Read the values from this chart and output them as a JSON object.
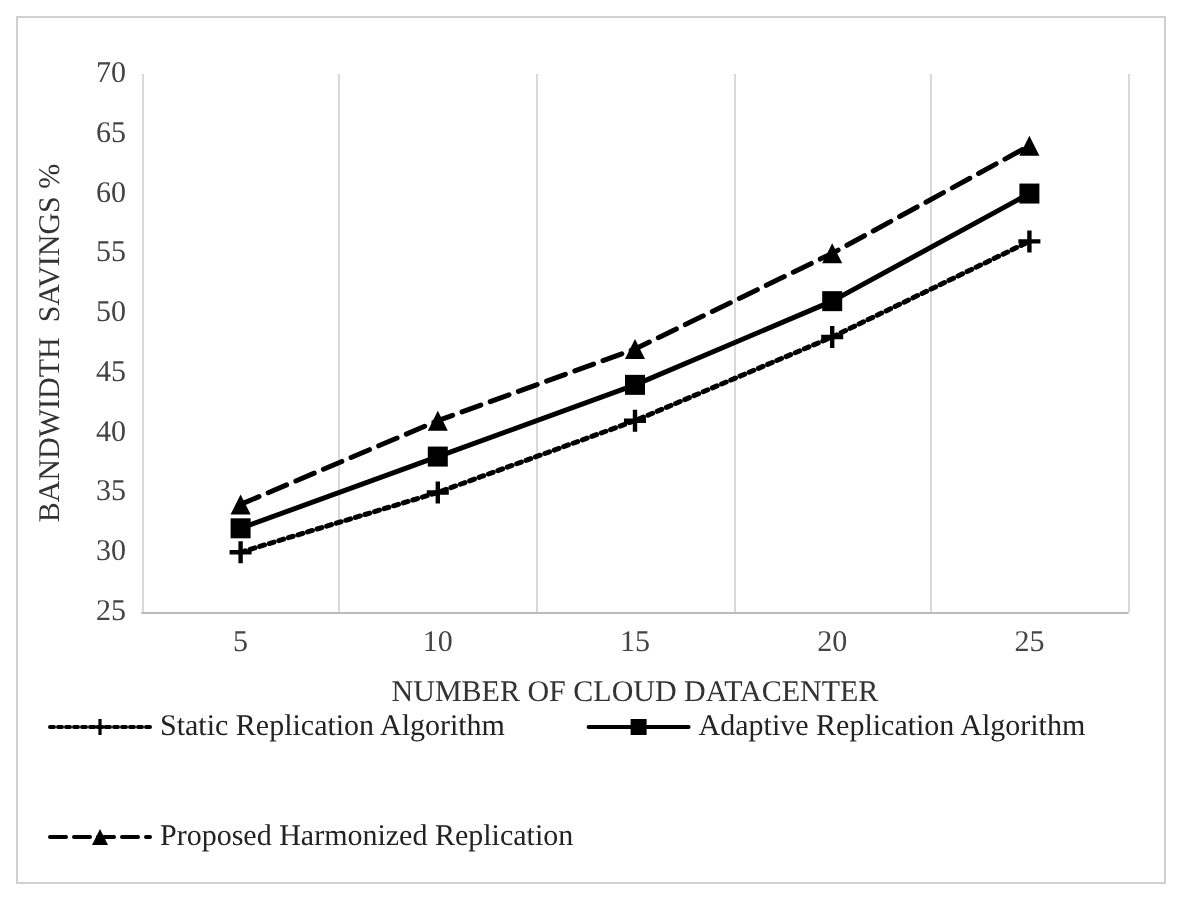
{
  "chart_data": {
    "type": "line",
    "xlabel": "NUMBER OF CLOUD DATACENTER",
    "ylabel": "BANDWIDTH  SAVINGS %",
    "categories": [
      "5",
      "10",
      "15",
      "20",
      "25"
    ],
    "series": [
      {
        "name": "Static Replication Algorithm",
        "color": "#000000",
        "marker": "cross",
        "line_style": "dotted",
        "values": [
          30,
          35,
          41,
          48,
          56
        ]
      },
      {
        "name": "Adaptive Replication Algorithm",
        "color": "#000000",
        "marker": "square",
        "line_style": "solid",
        "values": [
          32,
          38,
          44,
          51,
          60
        ]
      },
      {
        "name": "Proposed Harmonized Replication",
        "color": "#000000",
        "marker": "triangle",
        "line_style": "dashed",
        "values": [
          34,
          41,
          47,
          55,
          64
        ]
      }
    ],
    "ylim": [
      25,
      70
    ],
    "yticks": [
      25,
      30,
      35,
      40,
      45,
      50,
      55,
      60,
      65,
      70
    ],
    "grid": "x",
    "legend": "bottom"
  }
}
